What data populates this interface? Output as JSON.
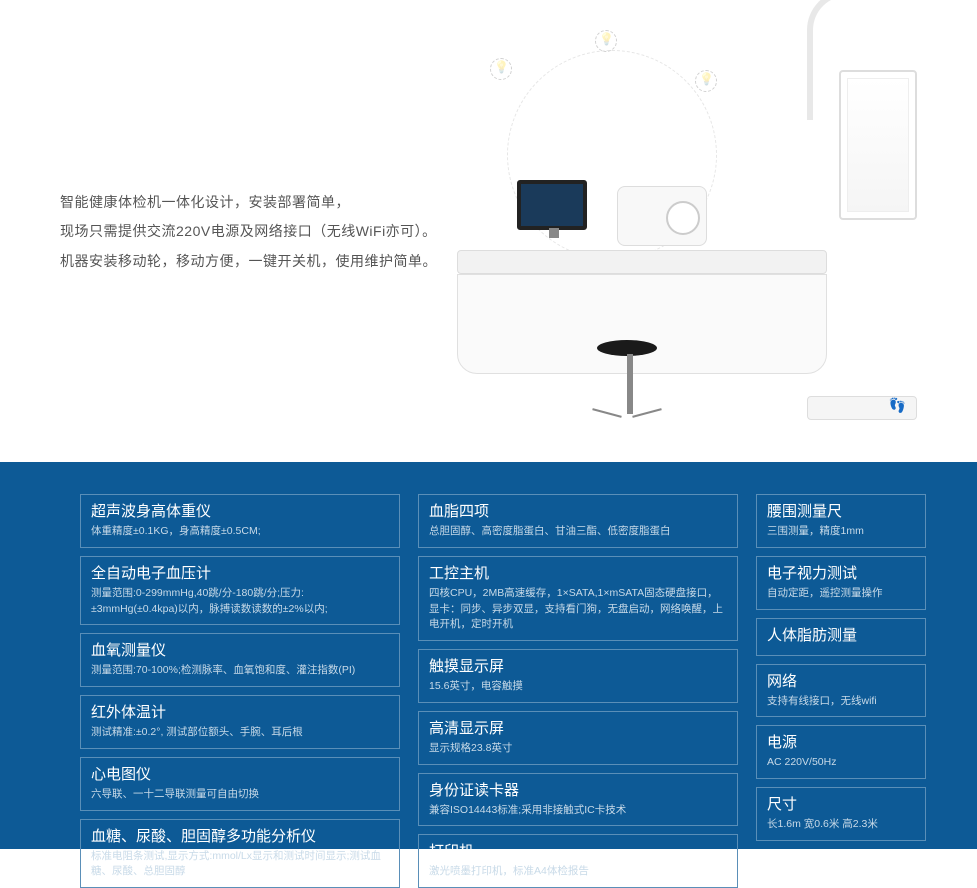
{
  "intro": {
    "line1": "智能健康体检机一体化设计，安装部署简单，",
    "line2": "现场只需提供交流220V电源及网络接口（无线WiFi亦可）。",
    "line3": "机器安装移动轮，移动方便，一键开关机，使用维护简单。"
  },
  "colors": {
    "panel_bg": "#0d5a96",
    "border": "#5a8fb8",
    "title": "#ffffff",
    "desc": "#c8dae8"
  },
  "specs": {
    "col1": [
      {
        "title": "超声波身高体重仪",
        "desc": "体重精度±0.1KG，身高精度±0.5CM;"
      },
      {
        "title": "全自动电子血压计",
        "desc": "测量范围:0-299mmHg,40跳/分-180跳/分;压力:±3mmHg(±0.4kpa)以内，脉搏读数读数的±2%以内;"
      },
      {
        "title": "血氧测量仪",
        "desc": "测量范围:70-100%;检测脉率、血氧饱和度、灌注指数(PI)"
      },
      {
        "title": "红外体温计",
        "desc": "测试精准:±0.2°, 测试部位额头、手腕、耳后根"
      },
      {
        "title": "心电图仪",
        "desc": "六导联、一十二导联测量可自由切换"
      },
      {
        "title": "血糖、尿酸、胆固醇多功能分析仪",
        "desc": "标准电阻条测试,显示方式:mmol/Lx显示和测试时间显示;测试血糖、尿酸、总胆固醇"
      }
    ],
    "col2": [
      {
        "title": "血脂四项",
        "desc": "总胆固醇、高密度脂蛋白、甘油三酯、低密度脂蛋白"
      },
      {
        "title": "工控主机",
        "desc": "四核CPU，2MB高速缓存，1×SATA,1×mSATA固态硬盘接口，显卡：同步、异步双显，支持看门狗，无盘启动，网络唤醒，上电开机，定时开机"
      },
      {
        "title": "触摸显示屏",
        "desc": "15.6英寸，电容触摸"
      },
      {
        "title": "高清显示屏",
        "desc": "显示规格23.8英寸"
      },
      {
        "title": "身份证读卡器",
        "desc": "兼容ISO14443标准;采用非接触式IC卡技术"
      },
      {
        "title": "打印机",
        "desc": "激光喷墨打印机，标准A4体检报告"
      }
    ],
    "col3": [
      {
        "title": "腰围测量尺",
        "desc": "三围测量，精度1mm"
      },
      {
        "title": "电子视力测试",
        "desc": "自动定距，遥控测量操作"
      },
      {
        "title": "人体脂肪测量",
        "desc": ""
      },
      {
        "title": "网络",
        "desc": "支持有线接口，无线wifi"
      },
      {
        "title": "电源",
        "desc": "AC 220V/50Hz"
      },
      {
        "title": "尺寸",
        "desc": "长1.6m 宽0.6米 高2.3米"
      }
    ]
  }
}
